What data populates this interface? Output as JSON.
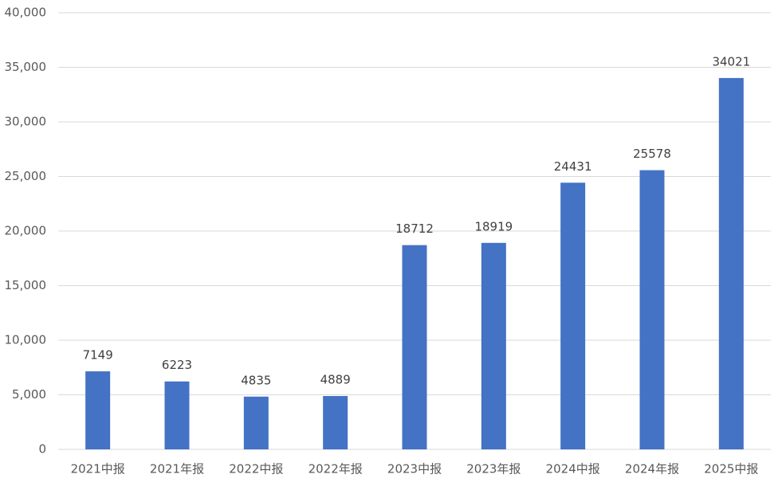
{
  "chart_data": {
    "type": "bar",
    "categories": [
      "2021中报",
      "2021年报",
      "2022中报",
      "2022年报",
      "2023中报",
      "2023年报",
      "2024中报",
      "2024年报",
      "2025中报"
    ],
    "values": [
      7149,
      6223,
      4835,
      4889,
      18712,
      18919,
      24431,
      25578,
      34021
    ],
    "color": "#4472c4",
    "ylim": [
      0,
      40000
    ],
    "yticks": [
      0,
      {
        "value": 5000,
        "label": "5,000"
      },
      {
        "value": 10000,
        "label": "10,000"
      },
      {
        "value": 15000,
        "label": "15,000"
      },
      {
        "value": 20000,
        "label": "20,000"
      },
      {
        "value": 25000,
        "label": "25,000"
      },
      {
        "value": 30000,
        "label": "30,000"
      },
      {
        "value": 35000,
        "label": "35,000"
      },
      {
        "value": 40000,
        "label": "40,000"
      }
    ],
    "grid": true
  }
}
